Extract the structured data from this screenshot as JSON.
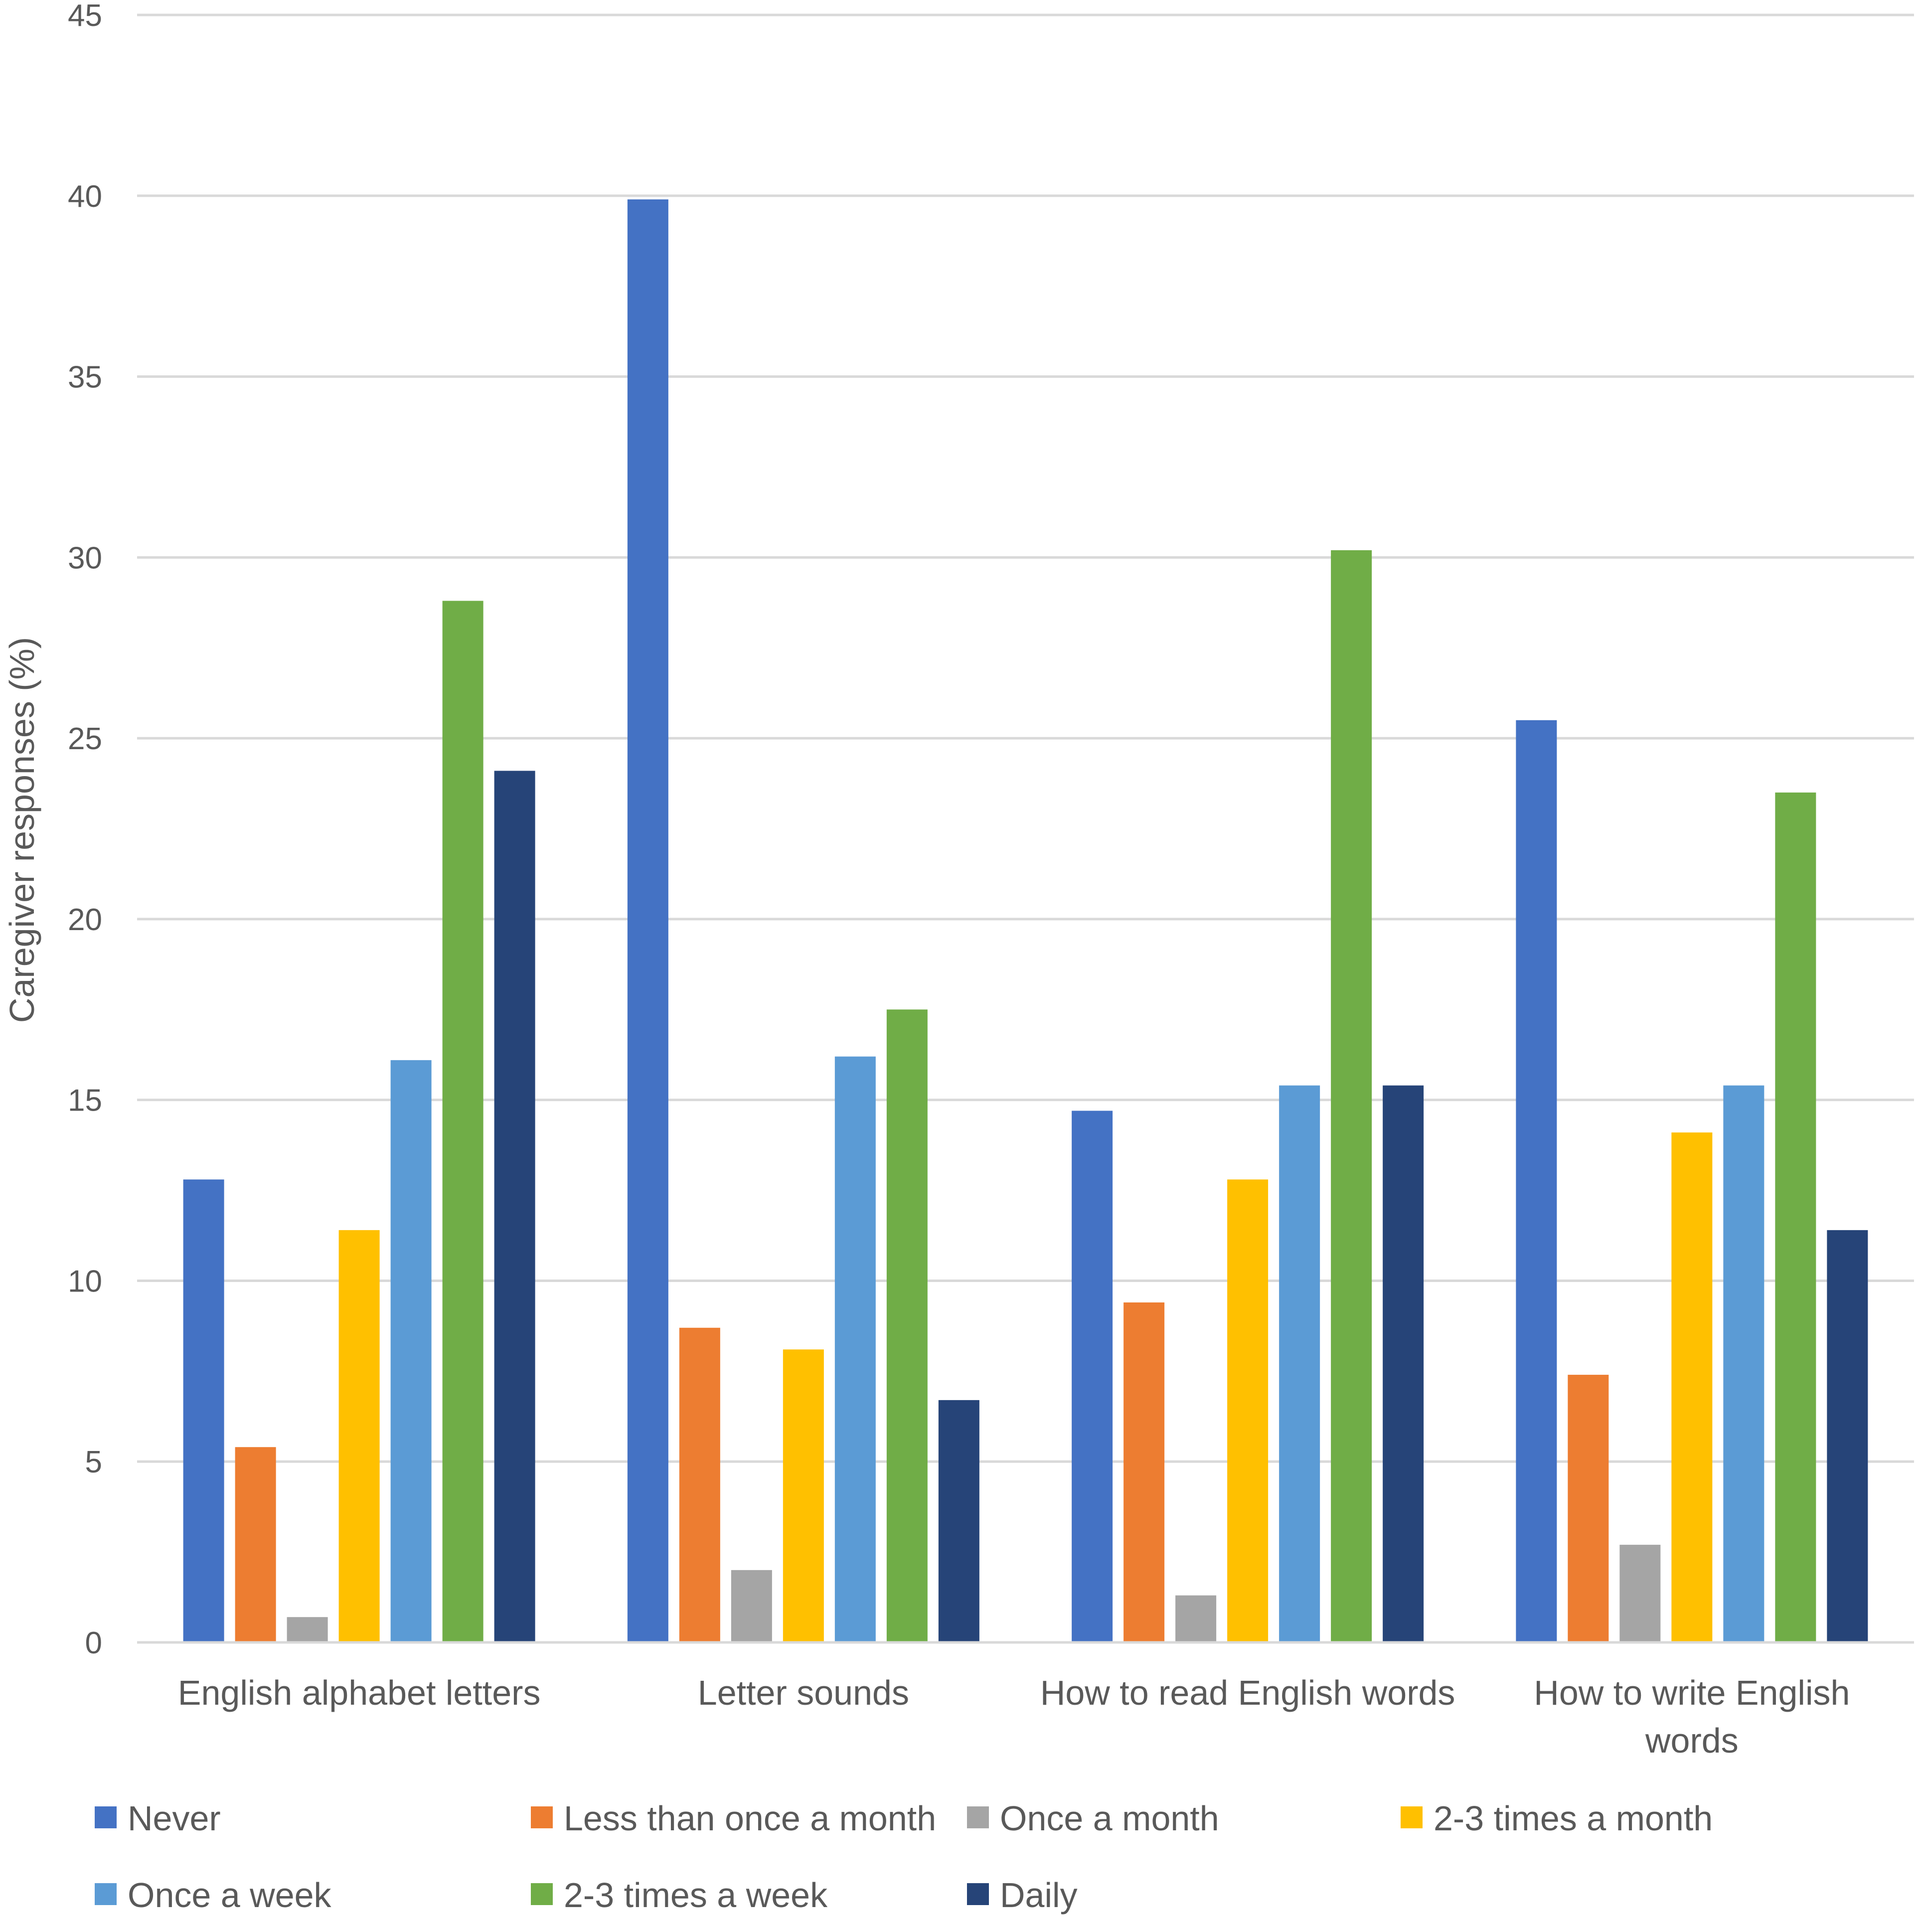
{
  "chart_data": {
    "type": "bar",
    "title": "",
    "xlabel": "",
    "ylabel": "Caregiver responses (%)",
    "ylim": [
      0,
      45
    ],
    "yticks": [
      0,
      5,
      10,
      15,
      20,
      25,
      30,
      35,
      40,
      45
    ],
    "grid": true,
    "legend_position": "bottom",
    "categories": [
      "English alphabet letters",
      "Letter sounds",
      "How to read English words",
      "How to write English words"
    ],
    "category_lines": [
      [
        "English alphabet letters"
      ],
      [
        "Letter sounds"
      ],
      [
        "How to read English words"
      ],
      [
        "How to write English",
        "words"
      ]
    ],
    "series": [
      {
        "name": "Never",
        "color": "#4472C4",
        "values": [
          12.8,
          39.9,
          14.7,
          25.5
        ]
      },
      {
        "name": "Less than once a month",
        "color": "#ED7D31",
        "values": [
          5.4,
          8.7,
          9.4,
          7.4
        ]
      },
      {
        "name": "Once a month",
        "color": "#A5A5A5",
        "values": [
          0.7,
          2.0,
          1.3,
          2.7
        ]
      },
      {
        "name": "2-3 times a month",
        "color": "#FFC000",
        "values": [
          11.4,
          8.1,
          12.8,
          14.1
        ]
      },
      {
        "name": "Once a week",
        "color": "#5B9BD5",
        "values": [
          16.1,
          16.2,
          15.4,
          15.4
        ]
      },
      {
        "name": "2-3 times a week",
        "color": "#70AD47",
        "values": [
          28.8,
          17.5,
          30.2,
          23.5
        ]
      },
      {
        "name": "Daily",
        "color": "#264478",
        "values": [
          24.1,
          6.7,
          15.4,
          11.4
        ]
      }
    ]
  }
}
